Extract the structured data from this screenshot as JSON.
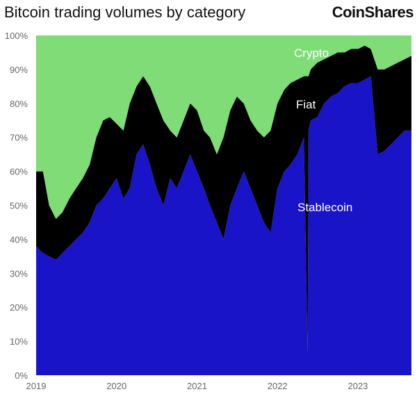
{
  "chart_data": {
    "type": "area",
    "stacked": true,
    "normalized_percent": true,
    "title": "Bitcoin trading volumes by category",
    "xlabel": "",
    "ylabel": "",
    "ylim": [
      0,
      100
    ],
    "xlim": [
      "2019-01-01",
      "2023-09-01"
    ],
    "y_ticks": [
      "0%",
      "10%",
      "20%",
      "30%",
      "40%",
      "50%",
      "60%",
      "70%",
      "80%",
      "90%",
      "100%"
    ],
    "x_ticks": [
      "2019",
      "2020",
      "2021",
      "2022",
      "2023"
    ],
    "grid": false,
    "legend": "inline labels",
    "colors": {
      "Stablecoin": "#1a14c8",
      "Fiat": "#000000",
      "Crypto": "#7fdc77"
    },
    "x": [
      "2019-01-01",
      "2019-02-01",
      "2019-03-01",
      "2019-04-01",
      "2019-05-01",
      "2019-06-01",
      "2019-07-01",
      "2019-08-01",
      "2019-09-01",
      "2019-10-01",
      "2019-11-01",
      "2019-12-01",
      "2020-01-01",
      "2020-02-01",
      "2020-03-01",
      "2020-04-01",
      "2020-05-01",
      "2020-06-01",
      "2020-07-01",
      "2020-08-01",
      "2020-09-01",
      "2020-10-01",
      "2020-11-01",
      "2020-12-01",
      "2021-01-01",
      "2021-02-01",
      "2021-03-01",
      "2021-04-01",
      "2021-05-01",
      "2021-06-01",
      "2021-07-01",
      "2021-08-01",
      "2021-09-01",
      "2021-10-01",
      "2021-11-01",
      "2021-12-01",
      "2022-01-01",
      "2022-02-01",
      "2022-03-01",
      "2022-04-01",
      "2022-05-01",
      "2022-05-18",
      "2022-05-22",
      "2022-06-01",
      "2022-07-01",
      "2022-08-01",
      "2022-09-01",
      "2022-10-01",
      "2022-11-01",
      "2022-12-01",
      "2023-01-01",
      "2023-02-01",
      "2023-03-01",
      "2023-04-01",
      "2023-05-01",
      "2023-06-01",
      "2023-07-01",
      "2023-08-01",
      "2023-09-01"
    ],
    "series": [
      {
        "name": "Stablecoin",
        "values": [
          38,
          36,
          35,
          34,
          36,
          38,
          40,
          42,
          45,
          50,
          52,
          55,
          58,
          52,
          55,
          65,
          68,
          62,
          55,
          50,
          58,
          55,
          60,
          65,
          60,
          55,
          50,
          45,
          40,
          50,
          55,
          60,
          55,
          50,
          45,
          42,
          55,
          60,
          62,
          65,
          70,
          6,
          72,
          75,
          76,
          80,
          82,
          83,
          85,
          86,
          86,
          87,
          88,
          65,
          66,
          68,
          70,
          72,
          72
        ]
      },
      {
        "name": "Fiat",
        "values": [
          22,
          24,
          15,
          12,
          12,
          14,
          15,
          16,
          17,
          20,
          23,
          21,
          16,
          20,
          25,
          20,
          20,
          23,
          25,
          25,
          14,
          15,
          15,
          15,
          18,
          17,
          20,
          20,
          30,
          28,
          27,
          20,
          20,
          22,
          25,
          30,
          25,
          24,
          24,
          22,
          18,
          82,
          16,
          15,
          16,
          13,
          12,
          12,
          10,
          10,
          10,
          10,
          8,
          25,
          24,
          23,
          22,
          21,
          22
        ]
      },
      {
        "name": "Crypto",
        "values": [
          40,
          40,
          50,
          54,
          52,
          48,
          45,
          42,
          38,
          30,
          25,
          24,
          26,
          28,
          20,
          15,
          12,
          15,
          20,
          25,
          28,
          30,
          25,
          20,
          22,
          28,
          30,
          35,
          30,
          22,
          18,
          20,
          25,
          28,
          30,
          28,
          20,
          16,
          14,
          13,
          12,
          12,
          12,
          10,
          8,
          7,
          6,
          5,
          5,
          4,
          4,
          3,
          4,
          10,
          10,
          9,
          8,
          7,
          6
        ]
      }
    ]
  }
}
